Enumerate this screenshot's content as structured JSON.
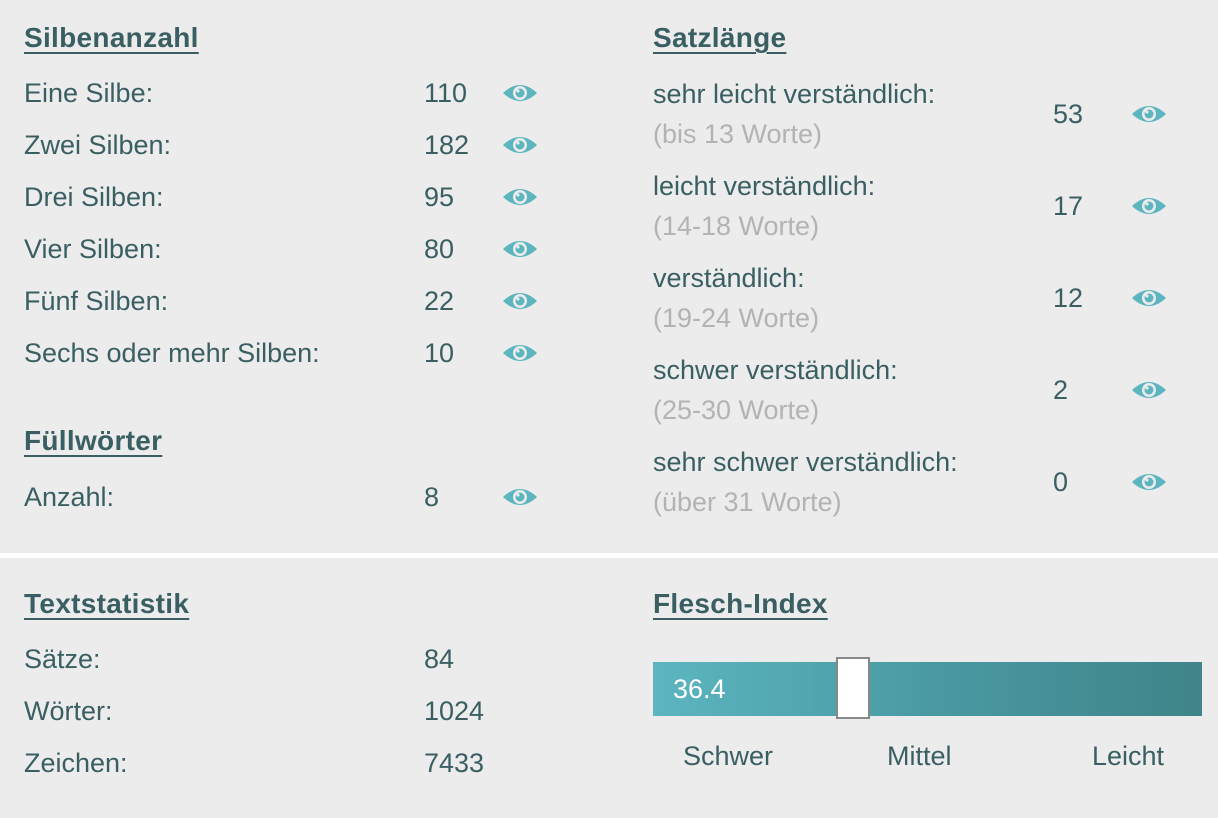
{
  "colors": {
    "panel_bg": "#ececec",
    "text": "#3a5f63",
    "muted": "#b3b3b3",
    "accent": "#5cb5bf"
  },
  "icons": {
    "eye": "eye-icon"
  },
  "silben": {
    "title": "Silbenanzahl",
    "rows": [
      {
        "label": "Eine Silbe:",
        "value": "110"
      },
      {
        "label": "Zwei Silben:",
        "value": "182"
      },
      {
        "label": "Drei Silben:",
        "value": "95"
      },
      {
        "label": "Vier Silben:",
        "value": "80"
      },
      {
        "label": "Fünf Silben:",
        "value": "22"
      },
      {
        "label": "Sechs oder mehr Silben:",
        "value": "10"
      }
    ]
  },
  "fuell": {
    "title": "Füllwörter",
    "rows": [
      {
        "label": "Anzahl:",
        "value": "8"
      }
    ]
  },
  "satz": {
    "title": "Satzlänge",
    "rows": [
      {
        "label": "sehr leicht verständlich:",
        "sub": "(bis 13 Worte)",
        "value": "53"
      },
      {
        "label": "leicht verständlich:",
        "sub": "(14-18 Worte)",
        "value": "17"
      },
      {
        "label": "verständlich:",
        "sub": "(19-24 Worte)",
        "value": "12"
      },
      {
        "label": "schwer verständlich:",
        "sub": "(25-30 Worte)",
        "value": "2"
      },
      {
        "label": "sehr schwer verständlich:",
        "sub": "(über 31 Worte)",
        "value": "0"
      }
    ]
  },
  "stats": {
    "title": "Textstatistik",
    "rows": [
      {
        "label": "Sätze:",
        "value": "84"
      },
      {
        "label": "Wörter:",
        "value": "1024"
      },
      {
        "label": "Zeichen:",
        "value": "7433"
      }
    ]
  },
  "flesch": {
    "title": "Flesch-Index",
    "value": "36.4",
    "level": 36.4,
    "min": 0,
    "max": 100,
    "labels": {
      "left": "Schwer",
      "mid": "Mittel",
      "right": "Leicht"
    }
  }
}
